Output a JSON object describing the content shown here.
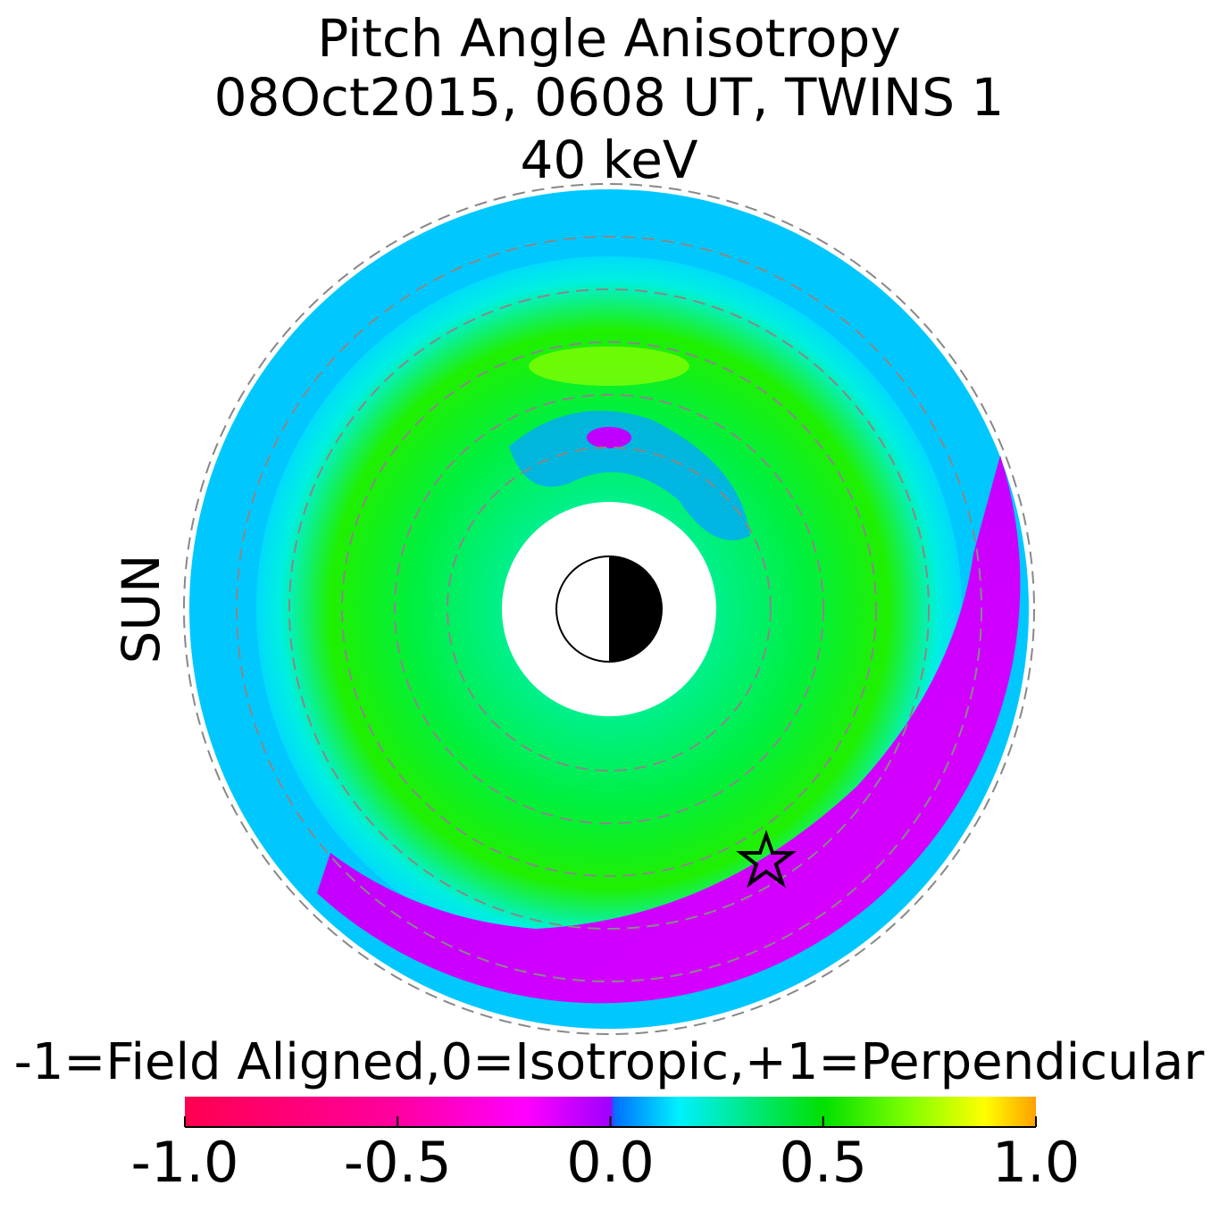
{
  "chart_data": {
    "type": "polar-map",
    "title": [
      "Pitch Angle Anisotropy",
      "08Oct2015, 0608 UT,  TWINS 1",
      "40 keV"
    ],
    "direction_label": "SUN",
    "direction_color": "#ffa500",
    "colorbar": {
      "label": "-1=Field Aligned,0=Isotropic,+1=Perpendicular",
      "lim": [
        -1.0,
        1.0
      ],
      "ticks": [
        {
          "value": -1.0,
          "label": "-1.0"
        },
        {
          "value": -0.5,
          "label": "-0.5"
        },
        {
          "value": 0.0,
          "label": "0.0"
        },
        0.5,
        {
          "value": 1.0,
          "label": "1.0"
        }
      ]
    }
  }
}
